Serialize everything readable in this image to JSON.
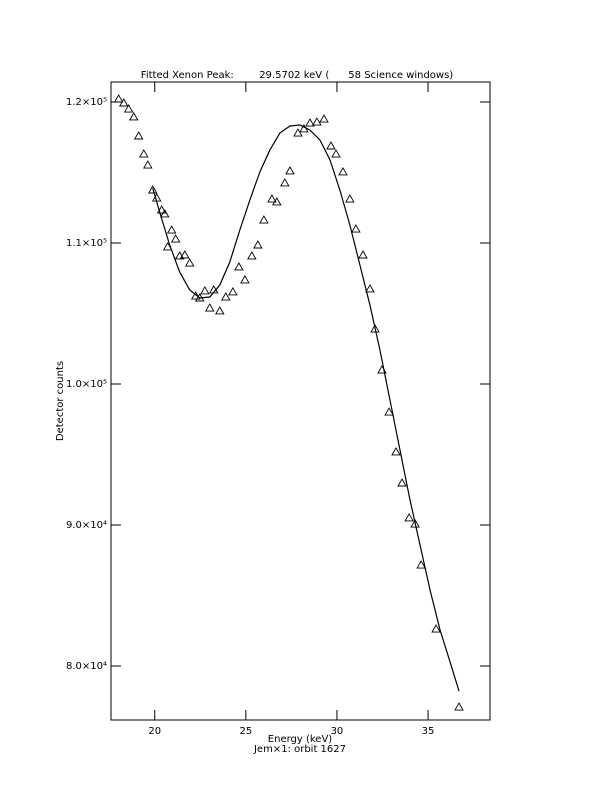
{
  "chart_data": {
    "type": "scatter",
    "title": "Fitted Xenon Peak:        29.5702 keV (      58 Science windows)",
    "x_label": "Energy (keV)",
    "subtitle": "Jem×1: orbit 1627",
    "y_label": "Detector counts",
    "xlim": [
      17.6,
      38.4
    ],
    "ylim": [
      76170,
      121420
    ],
    "xticks": [
      20,
      25,
      30,
      35
    ],
    "yticks": [
      {
        "value": 80000,
        "label": "8.0×10⁴"
      },
      {
        "value": 90000,
        "label": "9.0×10⁴"
      },
      {
        "value": 100000,
        "label": "1.0×10⁵"
      },
      {
        "value": 110000,
        "label": "1.1×10⁵"
      },
      {
        "value": 120000,
        "label": "1.2×10⁵"
      }
    ],
    "series": [
      {
        "type": "scatter",
        "color": "#000000",
        "x": [
          18.02,
          18.3,
          18.57,
          18.85,
          19.12,
          19.4,
          19.62,
          19.89,
          20.11,
          20.38,
          20.55,
          20.71,
          20.93,
          21.15,
          21.37,
          21.65,
          21.92,
          22.25,
          22.47,
          22.75,
          23.02,
          23.24,
          23.57,
          23.9,
          24.29,
          24.62,
          24.95,
          25.33,
          25.66,
          25.99,
          26.43,
          26.7,
          27.14,
          27.42,
          27.86,
          28.19,
          28.52,
          28.9,
          29.29,
          29.67,
          29.95,
          30.33,
          30.71,
          31.04,
          31.43,
          31.81,
          32.09,
          32.47,
          32.86,
          33.24,
          33.57,
          33.96,
          34.29,
          34.62,
          35.44,
          36.7
        ],
        "values": [
          120210,
          119930,
          119500,
          118940,
          117590,
          116310,
          115530,
          113760,
          113190,
          112340,
          112060,
          109720,
          110920,
          110280,
          109080,
          109150,
          108580,
          106240,
          106100,
          106600,
          105390,
          106670,
          105180,
          106170,
          106530,
          108300,
          107380,
          109080,
          109860,
          111630,
          113120,
          112910,
          114260,
          115110,
          117800,
          118090,
          118510,
          118580,
          118790,
          116880,
          116310,
          115040,
          113120,
          110990,
          109150,
          106740,
          103900,
          100990,
          98010,
          95180,
          92980,
          90500,
          90070,
          87160,
          82620,
          77090
        ]
      },
      {
        "type": "line",
        "color": "#000000",
        "x": [
          19.89,
          20.27,
          20.82,
          21.37,
          21.92,
          22.47,
          23.02,
          23.57,
          24.12,
          24.67,
          25.22,
          25.77,
          26.32,
          26.87,
          27.42,
          27.97,
          28.52,
          29.07,
          29.62,
          30.16,
          30.71,
          31.26,
          31.81,
          32.36,
          32.91,
          33.46,
          34.01,
          34.56,
          35.11,
          35.66,
          36.21,
          36.7
        ],
        "values": [
          113900,
          112200,
          109860,
          107940,
          106670,
          106100,
          106170,
          107020,
          108650,
          110920,
          113050,
          115040,
          116600,
          117800,
          118300,
          118370,
          118010,
          117300,
          115890,
          113760,
          111280,
          108440,
          105600,
          102410,
          98870,
          95320,
          91770,
          88580,
          85390,
          82550,
          80280,
          78220
        ]
      }
    ]
  }
}
